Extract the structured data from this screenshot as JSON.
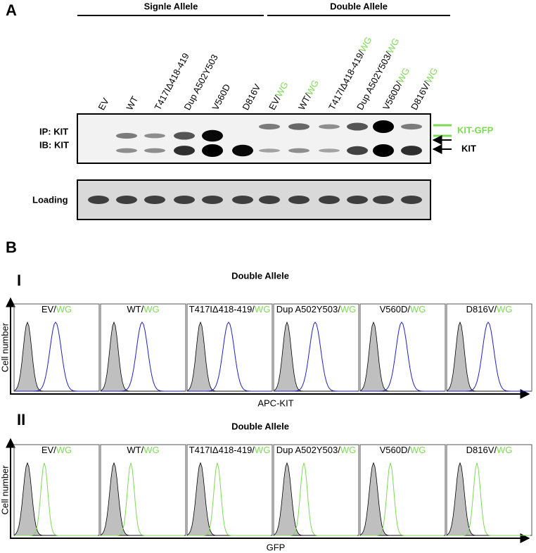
{
  "panel_a": {
    "label": "A",
    "groups": [
      "Signle Allele",
      "Double Allele"
    ],
    "lanes_single": [
      "EV",
      "WT",
      "T417IΔ418-419",
      "Dup A502Y503",
      "V560D",
      "D816V"
    ],
    "lanes_double": [
      {
        "name": "EV/",
        "tag": "WG"
      },
      {
        "name": "WT/",
        "tag": "WG"
      },
      {
        "name": "T417IΔ418-419/",
        "tag": "WG"
      },
      {
        "name": "Dup A502Y503/",
        "tag": "WG"
      },
      {
        "name": "V560D/",
        "tag": "WG"
      },
      {
        "name": "D816V/",
        "tag": "WG"
      }
    ],
    "blot_labels": [
      "IP: KIT",
      "IB: KIT"
    ],
    "arrow_labels": [
      "KIT-GFP",
      "KIT"
    ],
    "loading": "Loading"
  },
  "panel_b": {
    "label": "B",
    "rows": [
      {
        "label": "I",
        "title": "Double Allele",
        "y_label": "Cell number",
        "x_label": "APC-KIT",
        "samples": [
          {
            "name": "EV/",
            "tag": "WG"
          },
          {
            "name": "WT/",
            "tag": "WG"
          },
          {
            "name": "T417IΔ418-419/",
            "tag": "WG"
          },
          {
            "name": "Dup A502Y503/",
            "tag": "WG"
          },
          {
            "name": "V560D/",
            "tag": "WG"
          },
          {
            "name": "D816V/",
            "tag": "WG"
          }
        ]
      },
      {
        "label": "II",
        "title": "Double Allele",
        "y_label": "Cell number",
        "x_label": "GFP",
        "samples": [
          {
            "name": "EV/",
            "tag": "WG"
          },
          {
            "name": "WT/",
            "tag": "WG"
          },
          {
            "name": "T417IΔ418-419/",
            "tag": "WG"
          },
          {
            "name": "Dup A502Y503/",
            "tag": "WG"
          },
          {
            "name": "V560D/",
            "tag": "WG"
          },
          {
            "name": "D816V/",
            "tag": "WG"
          }
        ]
      }
    ]
  }
}
